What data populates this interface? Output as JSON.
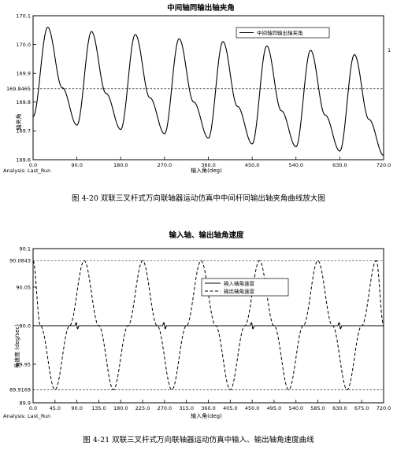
{
  "chart_data": [
    {
      "type": "line",
      "title": "中间轴同输出轴夹角",
      "xlabel": "输入角(deg)",
      "ylabel": "轴夹角",
      "analysis_label": "Analysis: Last_Run",
      "caption": "图 4-20 双联三叉杆式万向联轴器运动仿真中中间杆同输出轴夹角曲线放大图",
      "x_ticks": [
        "0.0",
        "90.0",
        "180.0",
        "270.0",
        "360.0",
        "450.0",
        "540.0",
        "630.0",
        "720.0"
      ],
      "y_ticks": [
        "170.1",
        "170.0",
        "169.9",
        "169.8",
        "169.7",
        "169.6"
      ],
      "xlim": [
        0,
        720
      ],
      "ylim": [
        169.6,
        170.1
      ],
      "reference_line": {
        "value": 169.8465,
        "label": "169.8465"
      },
      "side_mark": "1",
      "legend": {
        "position": "top-right",
        "entries": [
          "中间轴同输出轴夹角"
        ]
      },
      "series": [
        {
          "name": "中间轴同输出轴夹角",
          "style": "solid",
          "period": 90,
          "x": [
            0,
            30,
            60,
            90,
            120,
            150,
            180,
            210,
            240,
            270,
            300,
            330,
            360,
            390,
            420,
            450,
            480,
            510,
            540,
            570,
            600,
            630,
            660,
            690,
            720
          ],
          "y": [
            169.75,
            170.06,
            169.85,
            169.72,
            170.045,
            169.83,
            169.705,
            170.035,
            169.815,
            169.69,
            170.02,
            169.8,
            169.675,
            170.01,
            169.785,
            169.655,
            169.995,
            169.77,
            169.645,
            169.98,
            169.755,
            169.63,
            169.965,
            169.74,
            169.615
          ]
        }
      ]
    },
    {
      "type": "line",
      "title": "输入轴、输出轴角速度",
      "xlabel": "输入角(deg)",
      "ylabel": "角速度 (deg/sec)",
      "analysis_label": "Analysis: Last_Run",
      "caption": "图 4-21 双联三叉杆式万向联轴器运动仿真中输入、输出轴角速度曲线",
      "x_ticks": [
        "0.0",
        "45.0",
        "90.0",
        "135.0",
        "180.0",
        "225.0",
        "270.0",
        "315.0",
        "360.0",
        "405.0",
        "450.0",
        "495.0",
        "540.0",
        "585.0",
        "630.0",
        "675.0",
        "720.0"
      ],
      "y_ticks": [
        "90.1",
        "90.05",
        "90.0",
        "89.95",
        "89.9"
      ],
      "xlim": [
        0,
        720
      ],
      "ylim": [
        89.9,
        90.1
      ],
      "reference_lines": [
        {
          "value": 90.0843,
          "label": "90.0843"
        },
        {
          "value": 89.9169,
          "label": "89.9169"
        }
      ],
      "legend": {
        "position": "top-right",
        "entries": [
          "输入轴角速度",
          "输出轴角速度"
        ]
      },
      "series": [
        {
          "name": "输入轴角速度",
          "style": "solid",
          "value": 90.0,
          "spike_x": [
            90,
            270,
            450,
            630
          ],
          "spike_amplitude": 0.007
        },
        {
          "name": "输出轴角速度",
          "style": "dashed",
          "x": [
            0,
            15,
            45,
            75,
            105,
            135,
            165,
            195,
            225,
            255,
            285,
            315,
            345,
            375,
            405,
            435,
            465,
            495,
            525,
            555,
            585,
            615,
            645,
            675,
            705,
            720
          ],
          "y": [
            90.0843,
            90.0,
            89.9169,
            90.0,
            90.0843,
            90.0,
            89.9169,
            90.0,
            90.0843,
            90.0,
            89.9169,
            90.0,
            90.0843,
            90.0,
            89.9169,
            90.0,
            90.0843,
            90.0,
            89.9169,
            90.0,
            90.0843,
            90.0,
            89.9169,
            90.0,
            90.0843,
            90.0
          ]
        }
      ]
    }
  ]
}
